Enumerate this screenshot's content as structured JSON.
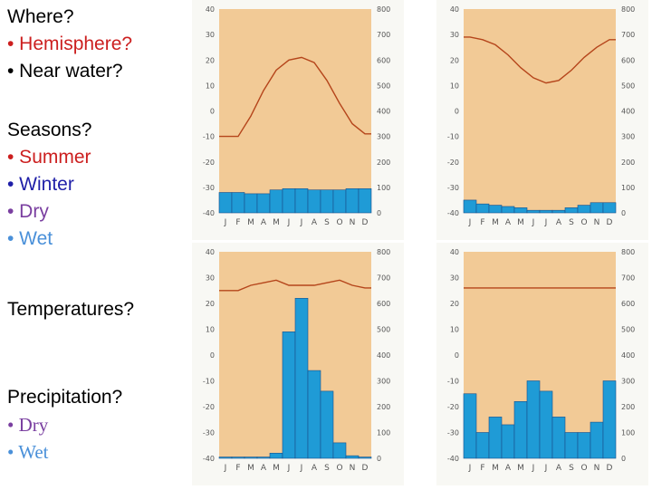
{
  "questions": {
    "where": {
      "title": "Where?",
      "items": [
        "• Hemisphere?",
        "• Near water?"
      ]
    },
    "seasons": {
      "title": "Seasons?",
      "items": [
        "• Summer",
        "• Winter",
        "• Dry",
        "• Wet"
      ]
    },
    "temperatures": {
      "title": "Temperatures?"
    },
    "precipitation": {
      "title": "Precipitation?",
      "items": [
        "• Dry",
        "• Wet"
      ]
    }
  },
  "colors": {
    "plot_bg": "#f2ca96",
    "temp_line": "#b5451b",
    "bars": "#1f9bd6",
    "bar_edge": "#1a4f8a",
    "axis_text": "#555555"
  },
  "chart_data": [
    {
      "type": "bar",
      "categories": [
        "J",
        "F",
        "M",
        "A",
        "M",
        "J",
        "J",
        "A",
        "S",
        "O",
        "N",
        "D"
      ],
      "temp_ticks": [
        40,
        30,
        20,
        10,
        0,
        -10,
        -20,
        -30,
        -40
      ],
      "precip_ticks": [
        800,
        700,
        600,
        500,
        400,
        300,
        200,
        100,
        0
      ],
      "ylim": [
        -40,
        40
      ],
      "y2lim": [
        0,
        800
      ],
      "temperature": [
        -10,
        -10,
        -2,
        8,
        16,
        20,
        21,
        19,
        12,
        3,
        -5,
        -9
      ],
      "precipitation": [
        80,
        80,
        75,
        75,
        90,
        95,
        95,
        90,
        90,
        90,
        95,
        95
      ]
    },
    {
      "type": "bar",
      "categories": [
        "J",
        "F",
        "M",
        "A",
        "M",
        "J",
        "J",
        "A",
        "S",
        "O",
        "N",
        "D"
      ],
      "temp_ticks": [
        40,
        30,
        20,
        10,
        0,
        -10,
        -20,
        -30,
        -40
      ],
      "precip_ticks": [
        800,
        700,
        600,
        500,
        400,
        300,
        200,
        100,
        0
      ],
      "ylim": [
        -40,
        40
      ],
      "y2lim": [
        0,
        800
      ],
      "temperature": [
        29,
        28,
        26,
        22,
        17,
        13,
        11,
        12,
        16,
        21,
        25,
        28
      ],
      "precipitation": [
        50,
        35,
        30,
        25,
        20,
        10,
        10,
        10,
        20,
        30,
        40,
        40
      ]
    },
    {
      "type": "bar",
      "categories": [
        "J",
        "F",
        "M",
        "A",
        "M",
        "J",
        "J",
        "A",
        "S",
        "O",
        "N",
        "D"
      ],
      "temp_ticks": [
        40,
        30,
        20,
        10,
        0,
        -10,
        -20,
        -30,
        -40
      ],
      "precip_ticks": [
        800,
        700,
        600,
        500,
        400,
        300,
        200,
        100,
        0
      ],
      "ylim": [
        -40,
        40
      ],
      "y2lim": [
        0,
        800
      ],
      "temperature": [
        25,
        25,
        27,
        28,
        29,
        27,
        27,
        27,
        28,
        29,
        27,
        26
      ],
      "precipitation": [
        5,
        5,
        5,
        5,
        20,
        490,
        620,
        340,
        260,
        60,
        10,
        5
      ]
    },
    {
      "type": "bar",
      "categories": [
        "J",
        "F",
        "M",
        "A",
        "M",
        "J",
        "J",
        "A",
        "S",
        "O",
        "N",
        "D"
      ],
      "temp_ticks": [
        40,
        30,
        20,
        10,
        0,
        -10,
        -20,
        -30,
        -40
      ],
      "precip_ticks": [
        800,
        700,
        600,
        500,
        400,
        300,
        200,
        100,
        0
      ],
      "ylim": [
        -40,
        40
      ],
      "y2lim": [
        0,
        800
      ],
      "temperature": [
        26,
        26,
        26,
        26,
        26,
        26,
        26,
        26,
        26,
        26,
        26,
        26
      ],
      "precipitation": [
        250,
        100,
        160,
        130,
        220,
        300,
        260,
        160,
        100,
        100,
        140,
        300
      ]
    }
  ]
}
